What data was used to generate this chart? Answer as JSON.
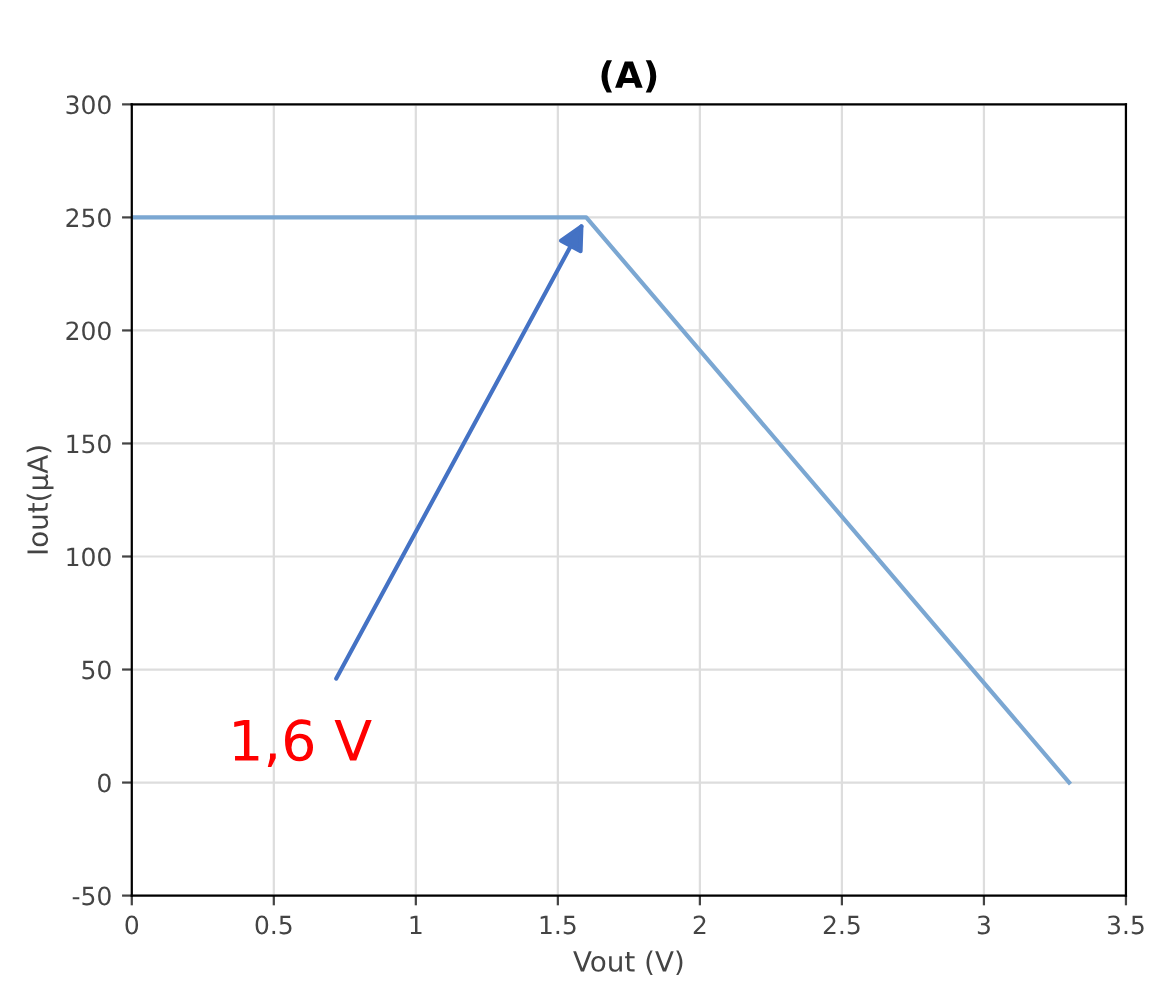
{
  "chart_data": {
    "type": "line",
    "title": "(A)",
    "xlabel": "Vout (V)",
    "ylabel": "Iout(μA)",
    "x": [
      0,
      1.6,
      3.3
    ],
    "series": [
      {
        "color": "#7ba7d2",
        "values": [
          250,
          250,
          0
        ]
      }
    ],
    "xlim": [
      0,
      3.5
    ],
    "xticks": [
      0,
      0.5,
      1,
      1.5,
      2,
      2.5,
      3,
      3.5
    ],
    "ylim": [
      -50,
      300
    ],
    "yticks": [
      -50,
      0,
      50,
      100,
      150,
      200,
      250,
      300
    ],
    "grid": true,
    "marker": "none",
    "line_style": "solid",
    "annotations": [
      {
        "text": "1,6 V",
        "x": 1.6,
        "y": 250
      }
    ]
  }
}
